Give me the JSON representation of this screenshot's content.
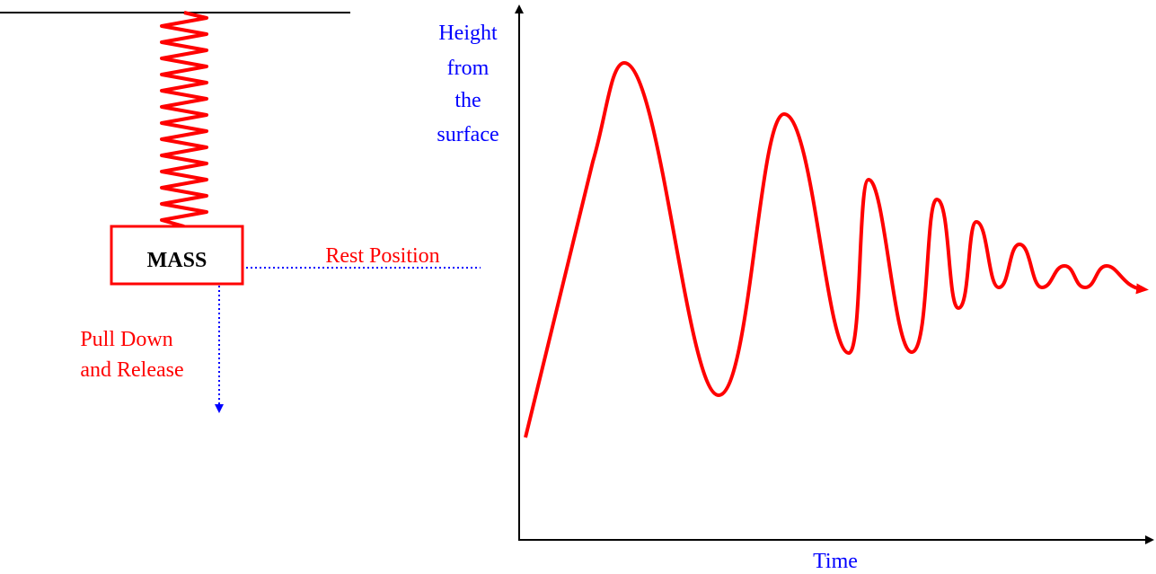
{
  "spring": {
    "mass_label": "MASS",
    "rest_label": "Rest Position",
    "pull_label": [
      "Pull Down",
      "and Release"
    ]
  },
  "graph": {
    "y_label": [
      "Height",
      "from",
      "the",
      "surface"
    ],
    "x_label": "Time"
  }
}
